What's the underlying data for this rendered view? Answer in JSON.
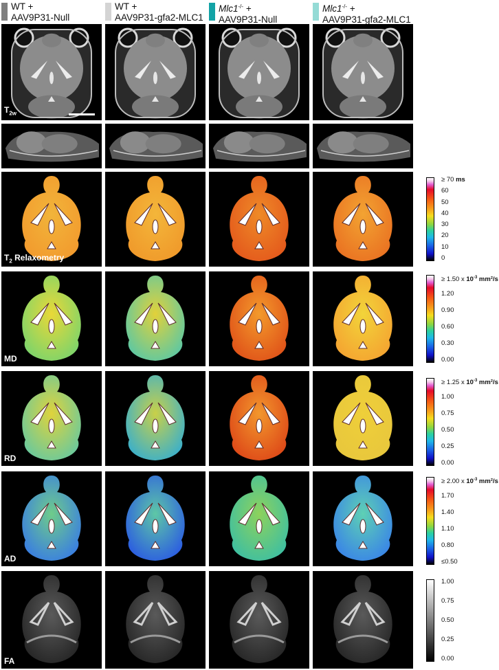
{
  "columns": [
    {
      "line1": "WT +",
      "line1_italic": "",
      "line1_sup": "",
      "line2": "AAV9P31-Null",
      "swatch": "#7f7f7f"
    },
    {
      "line1": "WT +",
      "line1_italic": "",
      "line1_sup": "",
      "line2": "AAV9P31-gfa2-MLC1",
      "swatch": "#d4d4d4"
    },
    {
      "line1": " +",
      "line1_italic": "Mlc1",
      "line1_sup": "-/-",
      "line2": "AAV9P31-Null",
      "swatch": "#13a3a6"
    },
    {
      "line1": " +",
      "line1_italic": "Mlc1",
      "line1_sup": "-/-",
      "line2": "AAV9P31-gfa2-MLC1",
      "swatch": "#95dbd6"
    }
  ],
  "rows": [
    {
      "label": "T",
      "label_sub": "2w",
      "label_suffix": ""
    },
    {
      "label": "",
      "label_sub": "",
      "label_suffix": ""
    },
    {
      "label": "T",
      "label_sub": "2",
      "label_suffix": " Relaxometry"
    },
    {
      "label": "MD",
      "label_sub": "",
      "label_suffix": ""
    },
    {
      "label": "RD",
      "label_sub": "",
      "label_suffix": ""
    },
    {
      "label": "AD",
      "label_sub": "",
      "label_suffix": ""
    },
    {
      "label": "FA",
      "label_sub": "",
      "label_suffix": ""
    }
  ],
  "scales": [
    {
      "name": "t2",
      "ticks": [
        "≥ 70",
        "60",
        "50",
        "40",
        "30",
        "20",
        "10",
        "0"
      ],
      "unit_plain": "",
      "unit_bold": "ms",
      "unit_sup": "",
      "unit_tail": "",
      "type": "jet"
    },
    {
      "name": "md",
      "ticks": [
        "≥ 1.50",
        "1.20",
        "0.90",
        "0.60",
        "0.30",
        "0.00"
      ],
      "unit_plain": "x ",
      "unit_bold": "10",
      "unit_sup": "-3",
      "unit_tail": " mm²/s",
      "type": "jet"
    },
    {
      "name": "rd",
      "ticks": [
        "≥ 1.25",
        "1.00",
        "0.75",
        "0.50",
        "0.25",
        "0.00"
      ],
      "unit_plain": "x ",
      "unit_bold": "10",
      "unit_sup": "-3",
      "unit_tail": " mm²/s",
      "type": "jet"
    },
    {
      "name": "ad",
      "ticks": [
        "≥ 2.00",
        "1.70",
        "1.40",
        "1.10",
        "0.80",
        "≤0.50"
      ],
      "unit_plain": "x ",
      "unit_bold": "10",
      "unit_sup": "-3",
      "unit_tail": " mm²/s",
      "type": "jet"
    },
    {
      "name": "fa",
      "ticks": [
        "1.00",
        "0.75",
        "0.50",
        "0.25",
        "0.00"
      ],
      "unit_plain": "",
      "unit_bold": "",
      "unit_sup": "",
      "unit_tail": "",
      "type": "gray"
    }
  ],
  "colors": {
    "wt_null": "#7f7f7f",
    "wt_mlc1": "#d4d4d4",
    "ko_null": "#13a3a6",
    "ko_mlc1": "#95dbd6"
  }
}
